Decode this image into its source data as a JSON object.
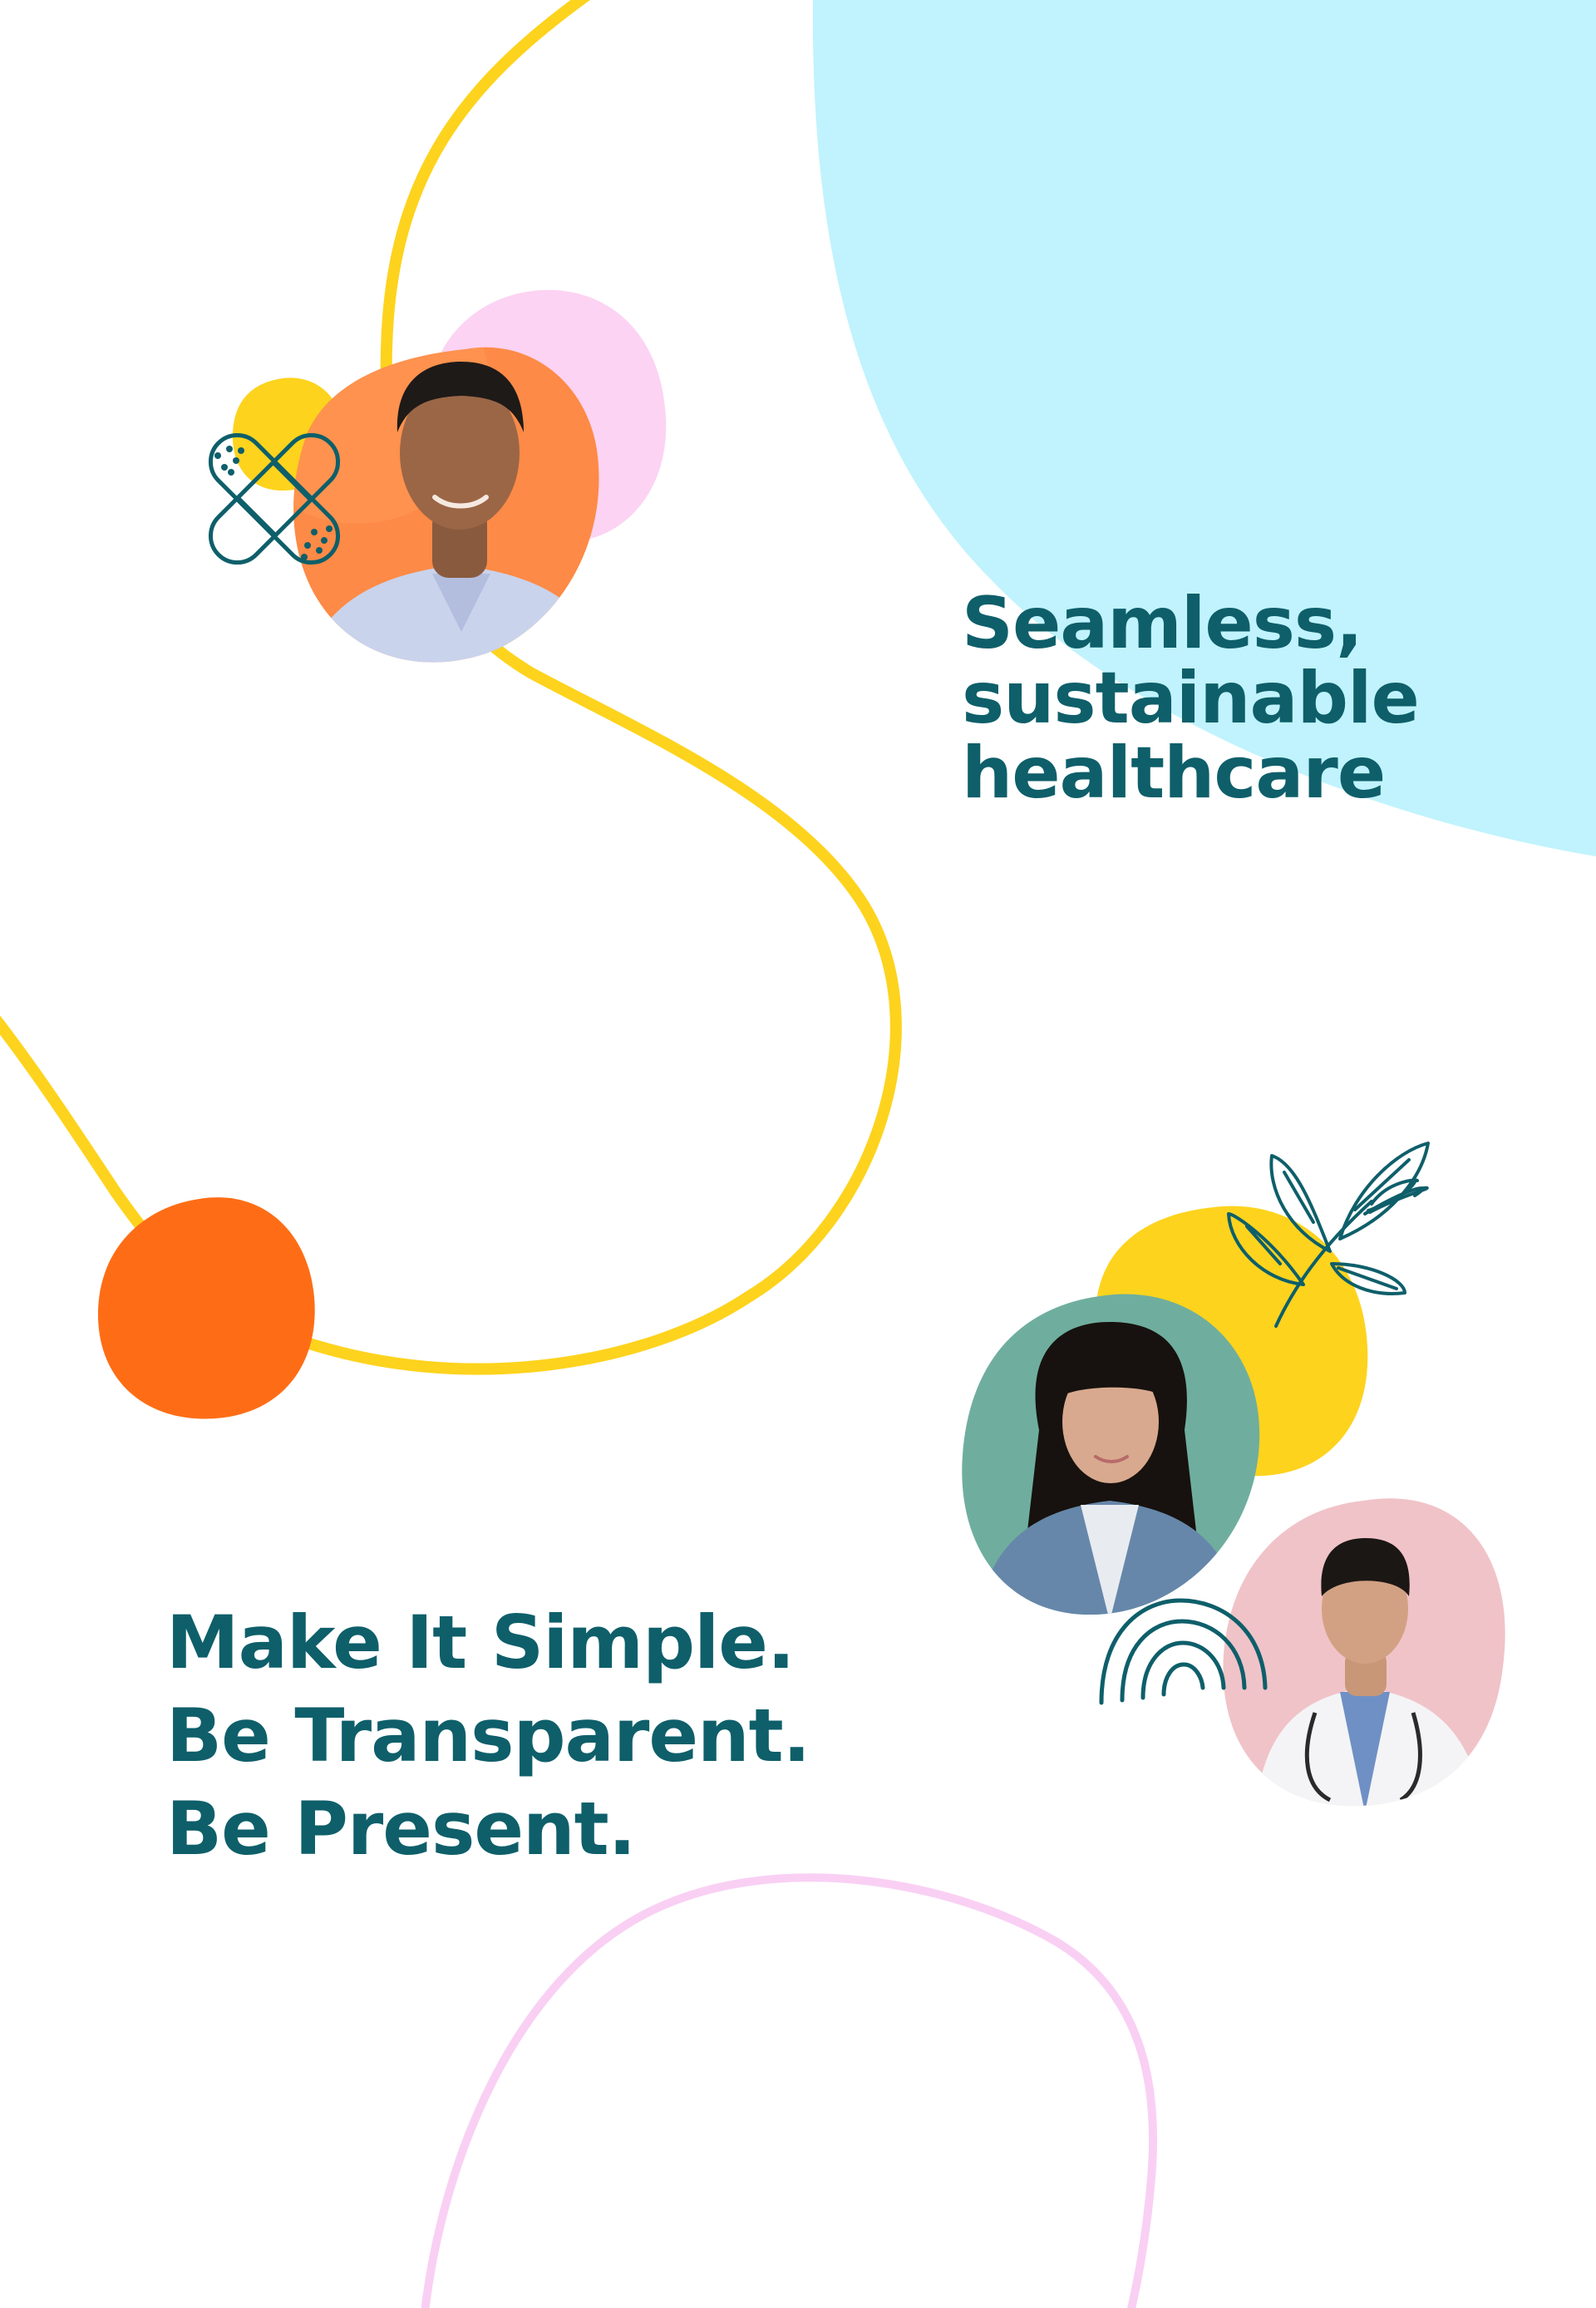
{
  "hero": {
    "line1": "Seamless,",
    "line2": "sustainable",
    "line3": "healthcare"
  },
  "values": {
    "line1": "Make It Simple.",
    "line2": "Be Transparent.",
    "line3": "Be Present."
  },
  "colors": {
    "text": "#0e5f6a",
    "cyan_blob": "#c0f3fd",
    "yellow_line": "#fdd31d",
    "orange_dot": "#fe6d16",
    "pink_blob": "#fcd3f3",
    "pink_line": "#f9d0f4",
    "icon_stroke": "#0e5f6a"
  },
  "icons": [
    "bandage-icon",
    "leaf-branch-icon",
    "rainbow-arc-icon"
  ],
  "portraits": [
    "portrait-man-orange",
    "portrait-woman-teal",
    "portrait-doctor-pink"
  ]
}
